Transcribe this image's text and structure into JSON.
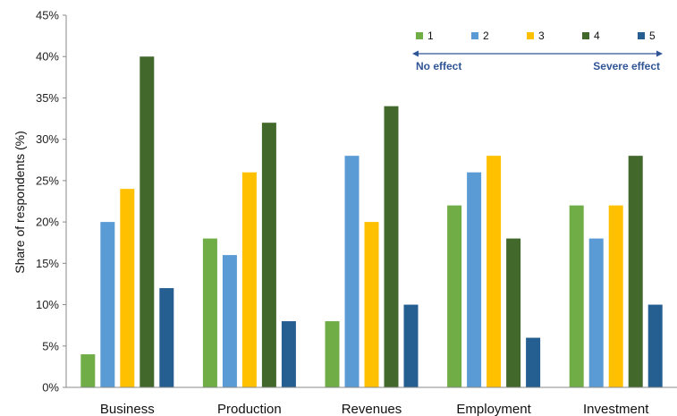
{
  "chart_data": {
    "type": "bar",
    "title": "",
    "xlabel": "",
    "ylabel": "Share of respondents (%)",
    "ylim": [
      0,
      45
    ],
    "yticks": [
      "0%",
      "5%",
      "10%",
      "15%",
      "20%",
      "25%",
      "30%",
      "35%",
      "40%",
      "45%"
    ],
    "ytick_values": [
      0,
      5,
      10,
      15,
      20,
      25,
      30,
      35,
      40,
      45
    ],
    "grid": false,
    "legend_position": "top-right",
    "categories": [
      "Business",
      "Production",
      "Revenues",
      "Employment",
      "Investment"
    ],
    "series": [
      {
        "name": "1",
        "color": "#70ad47",
        "values": [
          4,
          18,
          8,
          22,
          22
        ]
      },
      {
        "name": "2",
        "color": "#5b9bd5",
        "values": [
          20,
          16,
          28,
          26,
          18
        ]
      },
      {
        "name": "3",
        "color": "#ffc000",
        "values": [
          24,
          26,
          20,
          28,
          22
        ]
      },
      {
        "name": "4",
        "color": "#43682b",
        "values": [
          40,
          32,
          34,
          18,
          28
        ]
      },
      {
        "name": "5",
        "color": "#255e91",
        "values": [
          12,
          8,
          10,
          6,
          10
        ]
      }
    ],
    "annotations": {
      "left": "No effect",
      "right": "Severe effect",
      "color": "#2f5597"
    }
  }
}
